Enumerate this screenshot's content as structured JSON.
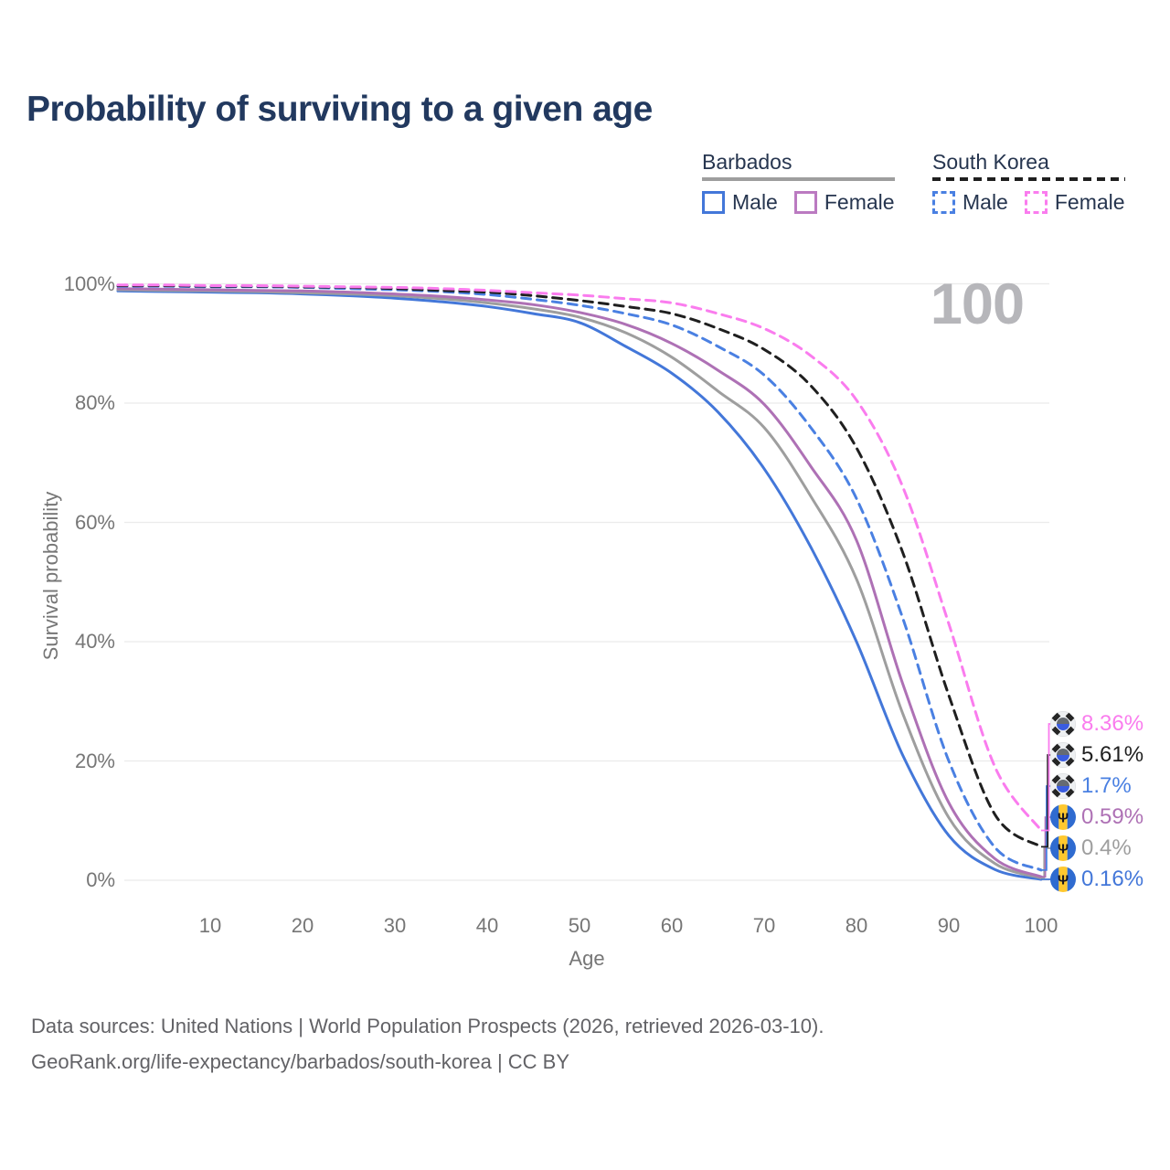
{
  "title": "Probability of surviving to a given age",
  "watermark": "100",
  "legend": {
    "groups": [
      {
        "label": "Barbados",
        "underline": {
          "style": "solid",
          "color": "#9e9e9e"
        },
        "items": [
          {
            "label": "Male",
            "style": "solid",
            "color": "#4377d9"
          },
          {
            "label": "Female",
            "style": "solid",
            "color": "#bb7ac1"
          }
        ]
      },
      {
        "label": "South Korea",
        "underline": {
          "style": "dashed",
          "color": "#1f1f1f"
        },
        "items": [
          {
            "label": "Male",
            "style": "dashed",
            "color": "#4a80e2"
          },
          {
            "label": "Female",
            "style": "dashed",
            "color": "#fa7cee"
          }
        ]
      }
    ]
  },
  "axes": {
    "x_label": "Age",
    "y_label": "Survival probability",
    "x_ticks": [
      "10",
      "20",
      "30",
      "40",
      "50",
      "60",
      "70",
      "80",
      "90",
      "100"
    ],
    "y_ticks": [
      "0%",
      "20%",
      "40%",
      "60%",
      "80%",
      "100%"
    ]
  },
  "chart_data": {
    "type": "line",
    "title": "Probability of surviving to a given age",
    "xlabel": "Age",
    "ylabel": "Survival probability",
    "xlim": [
      0,
      100
    ],
    "ylim": [
      0,
      100
    ],
    "grid": "horizontal",
    "legend_position": "top-right",
    "x_tick_values": [
      10,
      20,
      30,
      40,
      50,
      60,
      70,
      80,
      90,
      100
    ],
    "y_tick_values": [
      0,
      20,
      40,
      60,
      80,
      100
    ],
    "x": [
      0,
      5,
      10,
      15,
      20,
      25,
      30,
      35,
      40,
      45,
      50,
      55,
      60,
      65,
      70,
      75,
      80,
      85,
      90,
      95,
      100
    ],
    "series": [
      {
        "name": "Barbados Male",
        "country": "Barbados",
        "line_style": "solid",
        "color": "#4377d9",
        "flag": "barbados",
        "end_label": "0.16%",
        "values": [
          98.8,
          98.7,
          98.6,
          98.5,
          98.3,
          98.0,
          97.6,
          97.0,
          96.2,
          95.0,
          93.5,
          89.5,
          85.0,
          78.5,
          69.0,
          56.0,
          40.0,
          21.0,
          7.5,
          1.8,
          0.16
        ]
      },
      {
        "name": "Barbados",
        "country": "Barbados",
        "line_style": "solid",
        "color": "#9e9e9e",
        "flag": "barbados",
        "end_label": "0.4%",
        "values": [
          99.0,
          98.9,
          98.8,
          98.7,
          98.5,
          98.3,
          98.0,
          97.5,
          96.8,
          95.8,
          94.4,
          91.8,
          87.7,
          82.0,
          75.9,
          64.5,
          50.5,
          28.0,
          10.5,
          2.8,
          0.4
        ]
      },
      {
        "name": "Barbados Female",
        "country": "Barbados",
        "line_style": "solid",
        "color": "#ae71b5",
        "flag": "barbados",
        "end_label": "0.59%",
        "values": [
          99.2,
          99.1,
          99.0,
          98.9,
          98.8,
          98.6,
          98.3,
          97.9,
          97.3,
          96.5,
          95.2,
          93.2,
          90.0,
          85.5,
          79.8,
          69.5,
          57.0,
          33.0,
          13.0,
          3.6,
          0.59
        ]
      },
      {
        "name": "South Korea Male",
        "country": "South Korea",
        "line_style": "dashed",
        "color": "#4a80e2",
        "flag": "south-korea",
        "end_label": "1.7%",
        "values": [
          99.6,
          99.6,
          99.5,
          99.5,
          99.4,
          99.2,
          99.0,
          98.7,
          98.2,
          97.4,
          96.4,
          95.0,
          93.1,
          89.5,
          84.7,
          76.0,
          64.0,
          44.0,
          20.0,
          5.5,
          1.7
        ]
      },
      {
        "name": "South Korea",
        "country": "South Korea",
        "line_style": "dashed",
        "color": "#1f1f1f",
        "flag": "south-korea",
        "end_label": "5.61%",
        "values": [
          99.7,
          99.7,
          99.6,
          99.6,
          99.5,
          99.4,
          99.2,
          98.9,
          98.6,
          98.0,
          97.2,
          96.2,
          95.0,
          92.5,
          89.0,
          83.0,
          72.5,
          55.0,
          31.0,
          11.0,
          5.61
        ]
      },
      {
        "name": "South Korea Female",
        "country": "South Korea",
        "line_style": "dashed",
        "color": "#fa7cee",
        "flag": "south-korea",
        "end_label": "8.36%",
        "values": [
          99.8,
          99.8,
          99.7,
          99.7,
          99.6,
          99.5,
          99.4,
          99.2,
          98.9,
          98.5,
          98.1,
          97.5,
          96.8,
          95.0,
          92.5,
          88.0,
          80.5,
          66.0,
          43.0,
          19.0,
          8.36
        ]
      }
    ]
  },
  "footer": {
    "line1": "Data sources: United Nations | World Population Prospects (2026, retrieved 2026-03-10).",
    "line2": "GeoRank.org/life-expectancy/barbados/south-korea | CC BY"
  }
}
